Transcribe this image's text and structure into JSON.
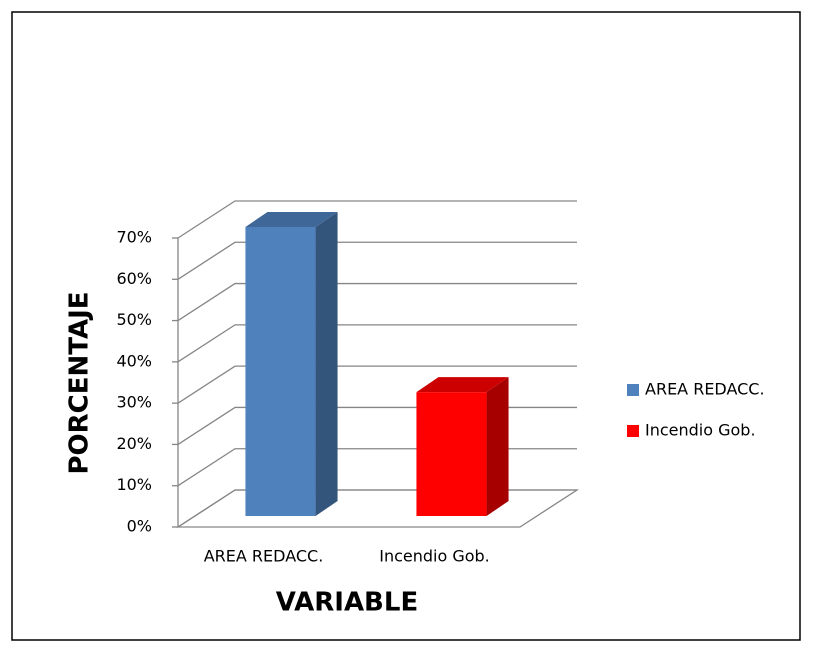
{
  "chart_data": {
    "type": "bar3d",
    "categories": [
      "AREA REDACC.",
      "Incendio Gob."
    ],
    "values": [
      70,
      30
    ],
    "colors": [
      "#4f81bd",
      "#ff0000"
    ],
    "ylim": [
      0,
      70
    ],
    "yticks": [
      {
        "value": 0,
        "label": "0%"
      },
      {
        "value": 10,
        "label": "10%"
      },
      {
        "value": 20,
        "label": "20%"
      },
      {
        "value": 30,
        "label": "30%"
      },
      {
        "value": 40,
        "label": "40%"
      },
      {
        "value": 50,
        "label": "50%"
      },
      {
        "value": 60,
        "label": "60%"
      },
      {
        "value": 70,
        "label": "70%"
      }
    ],
    "x_label": "VARIABLE",
    "y_label": "PORCENTAJE",
    "grid": true,
    "legend": "right"
  }
}
